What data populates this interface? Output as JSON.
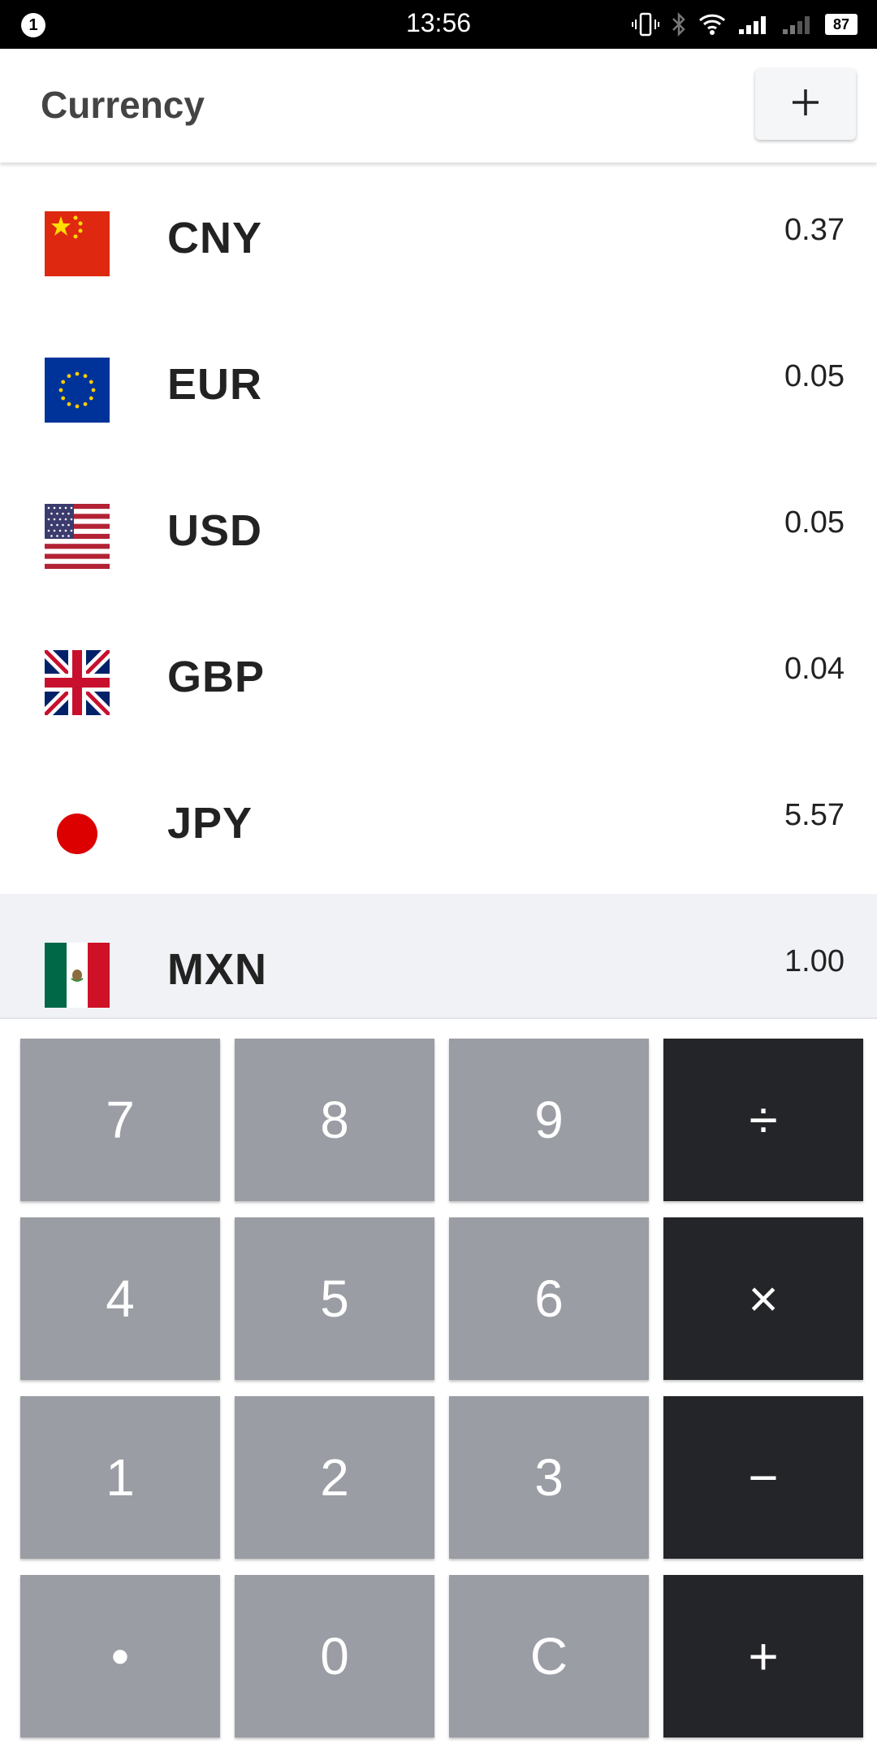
{
  "status_bar": {
    "notification_count": "1",
    "time": "13:56",
    "battery": "87"
  },
  "app_bar": {
    "title": "Currency",
    "add_icon": "plus-icon"
  },
  "currencies": [
    {
      "code": "CNY",
      "value": "0.37",
      "flag": "flag-china-icon",
      "selected": false
    },
    {
      "code": "EUR",
      "value": "0.05",
      "flag": "flag-eu-icon",
      "selected": false
    },
    {
      "code": "USD",
      "value": "0.05",
      "flag": "flag-usa-icon",
      "selected": false
    },
    {
      "code": "GBP",
      "value": "0.04",
      "flag": "flag-uk-icon",
      "selected": false
    },
    {
      "code": "JPY",
      "value": "5.57",
      "flag": "flag-japan-icon",
      "selected": false
    },
    {
      "code": "MXN",
      "value": "1.00",
      "flag": "flag-mexico-icon",
      "selected": true
    }
  ],
  "keypad": {
    "keys": [
      [
        "7",
        "8",
        "9",
        "÷"
      ],
      [
        "4",
        "5",
        "6",
        "×"
      ],
      [
        "1",
        "2",
        "3",
        "−"
      ],
      [
        "•",
        "0",
        "C",
        "+"
      ]
    ]
  },
  "colors": {
    "number_key": "#9a9da3",
    "operator_key": "#242528",
    "selected_row": "#f1f2f6"
  }
}
